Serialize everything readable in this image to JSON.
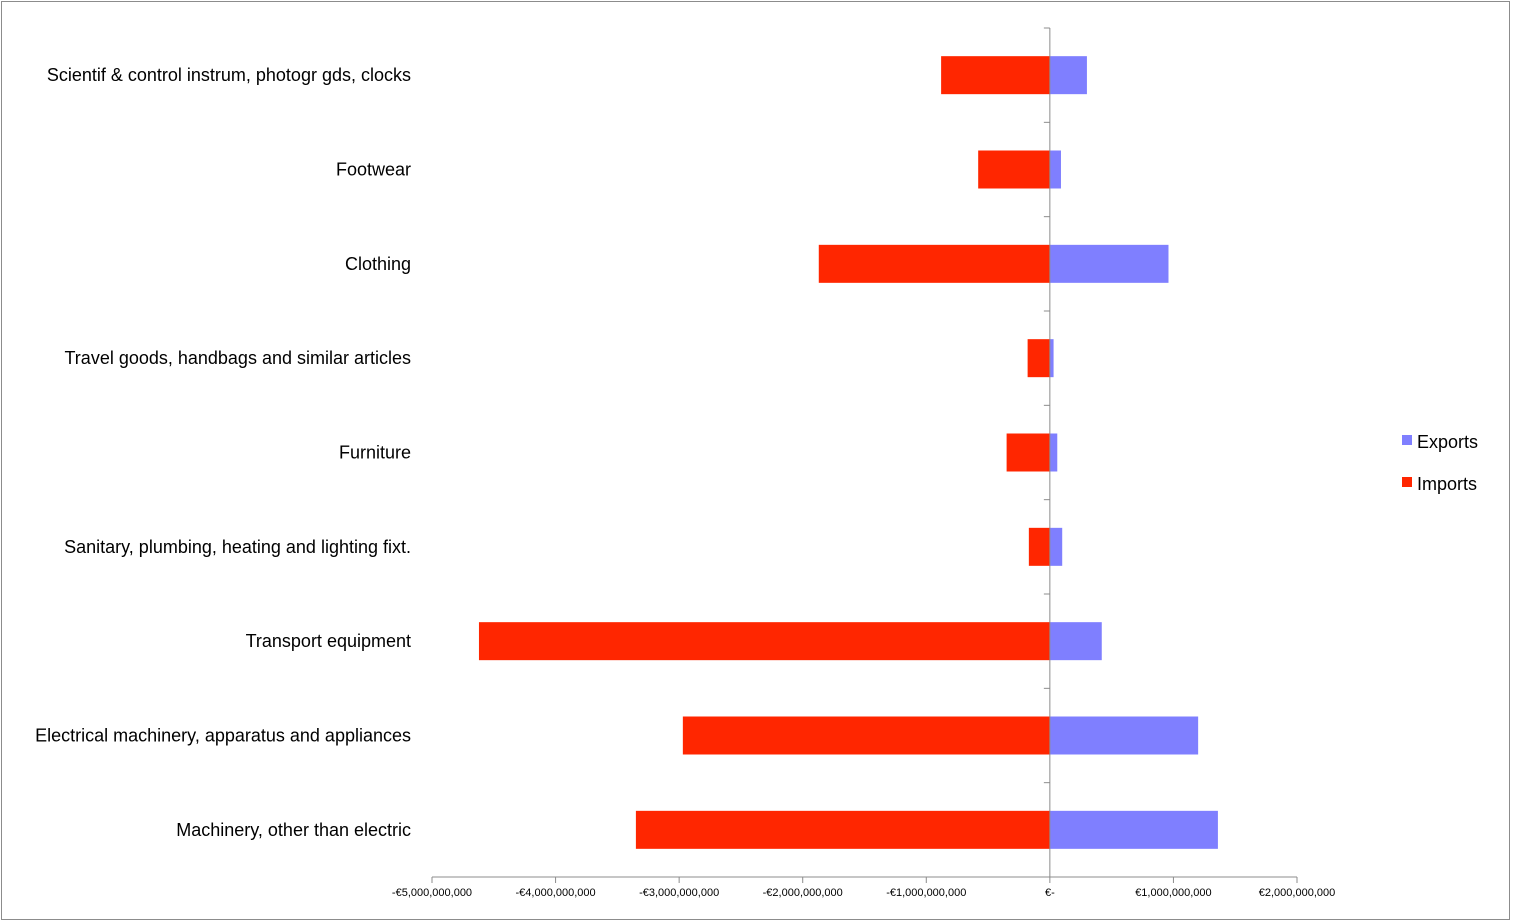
{
  "chart_data": {
    "type": "bar",
    "orientation": "horizontal",
    "categories": [
      "Scientif & control instrum, photogr gds, clocks",
      "Footwear",
      "Clothing",
      "Travel goods, handbags and similar articles",
      "Furniture",
      "Sanitary, plumbing, heating and lighting fixt.",
      "Transport equipment",
      "Electrical machinery, apparatus and appliances",
      "Machinery, other than electric"
    ],
    "series": [
      {
        "name": "Exports",
        "color": "#7f7fff",
        "values": [
          300000000,
          90000000,
          960000000,
          30000000,
          60000000,
          100000000,
          420000000,
          1200000000,
          1360000000
        ]
      },
      {
        "name": "Imports",
        "color": "#ff2600",
        "values": [
          -880000000,
          -580000000,
          -1870000000,
          -180000000,
          -350000000,
          -170000000,
          -4620000000,
          -2970000000,
          -3350000000
        ]
      }
    ],
    "xlim": [
      -5000000000,
      2000000000
    ],
    "x_ticks": [
      -5000000000,
      -4000000000,
      -3000000000,
      -2000000000,
      -1000000000,
      0,
      1000000000,
      2000000000
    ],
    "x_tick_labels": [
      "-€5,000,000,000",
      "-€4,000,000,000",
      "-€3,000,000,000",
      "-€2,000,000,000",
      "-€1,000,000,000",
      "€-",
      "€1,000,000,000",
      "€2,000,000,000"
    ],
    "legend_position": "right",
    "grid": false
  }
}
